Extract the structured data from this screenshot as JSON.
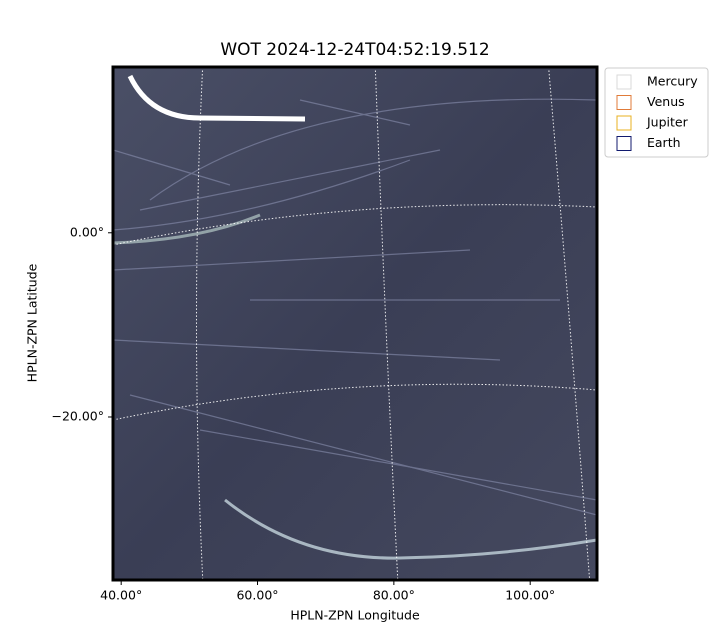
{
  "chart_data": {
    "type": "image",
    "title": "WOT 2024-12-24T04:52:19.512",
    "x_label": "HPLN-ZPN Longitude",
    "y_label": "HPLN-ZPN Latitude",
    "xlim": [
      38.8,
      109.8
    ],
    "ylim": [
      -37.7,
      18.0
    ],
    "xticks": [
      {
        "value": 40,
        "label": "40.00°"
      },
      {
        "value": 60,
        "label": "60.00°"
      },
      {
        "value": 80,
        "label": "80.00°"
      },
      {
        "value": 100,
        "label": "100.00°"
      }
    ],
    "yticks": [
      {
        "value": 0,
        "label": "0.00°"
      },
      {
        "value": -20,
        "label": "−20.00°"
      }
    ],
    "grid": true,
    "legend_loc": "upper right outside",
    "series": [
      {
        "name": "Mercury",
        "color": "#d9d9d9"
      },
      {
        "name": "Venus",
        "color": "#e07b39"
      },
      {
        "name": "Jupiter",
        "color": "#e8b020"
      },
      {
        "name": "Earth",
        "color": "#101a6e"
      }
    ]
  }
}
